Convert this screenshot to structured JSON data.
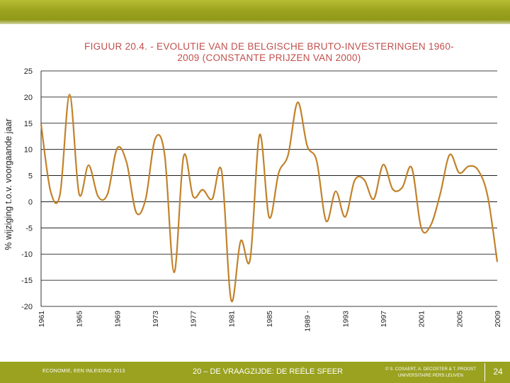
{
  "slide": {
    "footer_left": "ECONOMIE, EEN INLEIDING 2013",
    "footer_center": "20 – DE VRAAGZIJDE: DE REËLE SFEER",
    "footer_right_line1": "© S. COSAERT, A. DECOSTER & T. PROOST",
    "footer_right_line2": "UNIVERSITAIRE PERS LEUVEN",
    "page_number": "24",
    "colors": {
      "header_bar": "#9aa21f",
      "title": "#c0504d",
      "line": "#c2822a"
    }
  },
  "chart_data": {
    "type": "line",
    "title_line1": "FIGUUR 20.4. - EVOLUTIE VAN DE BELGISCHE BRUTO-INVESTERINGEN 1960-",
    "title_line2": "2009 (CONSTANTE PRIJZEN VAN 2000)",
    "xlabel": "",
    "ylabel": "% wijziging t.o.v. voorgaande jaar",
    "ylim": [
      -20,
      25
    ],
    "xlim": [
      1961,
      2009
    ],
    "yticks": [
      25,
      20,
      15,
      10,
      5,
      0,
      -5,
      -10,
      -15,
      -20
    ],
    "ytick_labels": [
      "25",
      "20",
      "15",
      "10",
      "5",
      "0",
      "-5",
      "-10",
      "-15",
      "-20"
    ],
    "xticks": [
      1961,
      1965,
      1969,
      1973,
      1977,
      1981,
      1985,
      1989,
      1993,
      1997,
      2001,
      2005,
      2009
    ],
    "xtick_labels": [
      "1961",
      "1965",
      "1969",
      "1973",
      "1977",
      "1981",
      "1985",
      "1989 -",
      "1993",
      "1997",
      "2001",
      "2005",
      "2009"
    ],
    "grid": true,
    "series": [
      {
        "name": "Bruto-investeringen",
        "x": [
          1961,
          1962,
          1963,
          1964,
          1965,
          1966,
          1967,
          1968,
          1969,
          1970,
          1971,
          1972,
          1973,
          1974,
          1975,
          1976,
          1977,
          1978,
          1979,
          1980,
          1981,
          1982,
          1983,
          1984,
          1985,
          1986,
          1987,
          1988,
          1989,
          1990,
          1991,
          1992,
          1993,
          1994,
          1995,
          1996,
          1997,
          1998,
          1999,
          2000,
          2001,
          2002,
          2003,
          2004,
          2005,
          2006,
          2007,
          2008,
          2009
        ],
        "values": [
          14.8,
          2.0,
          1.5,
          20.5,
          1.5,
          7.0,
          1.0,
          1.5,
          10.2,
          7.5,
          -2.0,
          0.5,
          12.0,
          9.0,
          -13.5,
          8.7,
          1.0,
          2.3,
          0.5,
          5.8,
          -18.8,
          -7.5,
          -11.0,
          12.8,
          -3.0,
          5.5,
          9.0,
          19.0,
          10.7,
          7.8,
          -3.7,
          2.0,
          -2.9,
          4.1,
          4.2,
          0.5,
          7.1,
          2.4,
          2.7,
          6.5,
          -5.0,
          -4.5,
          1.5,
          9.0,
          5.5,
          6.8,
          6.0,
          1.0,
          -11.5
        ]
      }
    ]
  }
}
